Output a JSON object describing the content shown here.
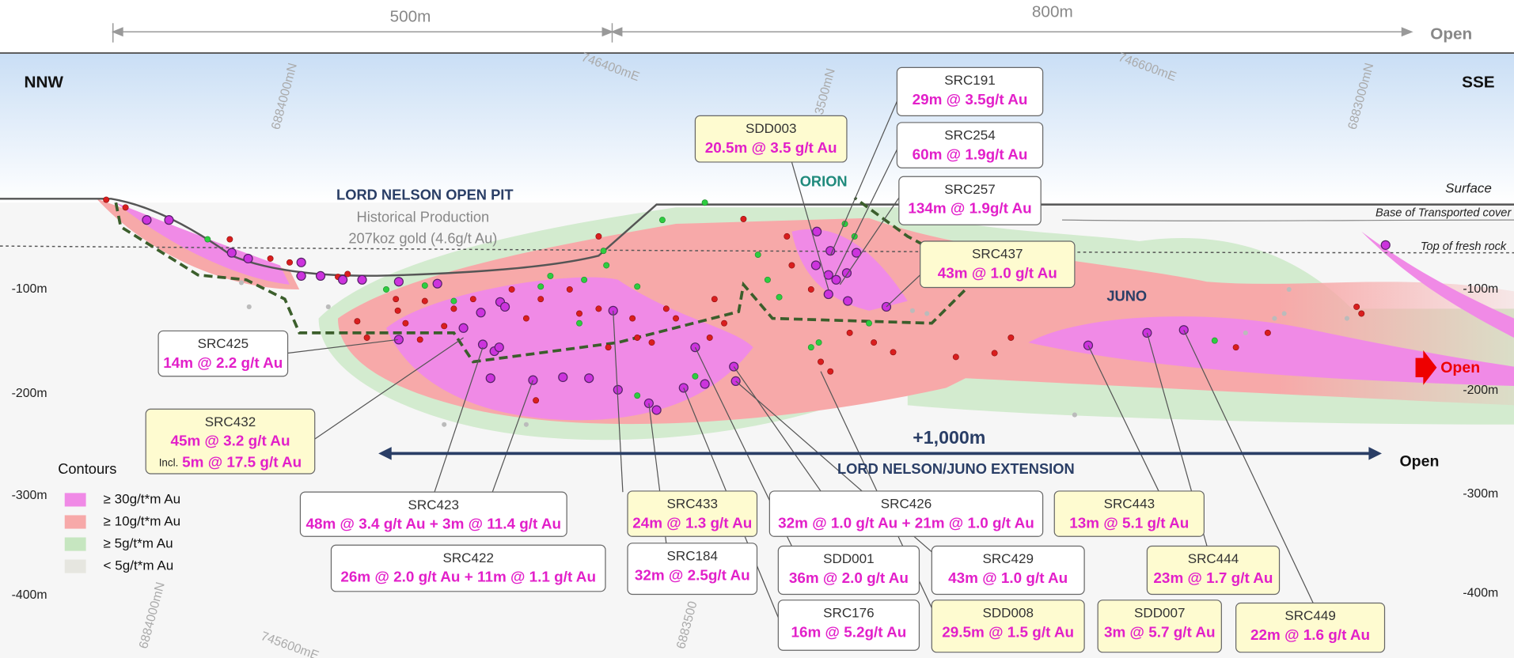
{
  "dimensions": {
    "left": "500m",
    "right": "800m",
    "open": "Open"
  },
  "compass": {
    "west": "NNW",
    "east": "SSE"
  },
  "grid_labels": [
    "6884000mN",
    "746400mE",
    "3500mN",
    "746600mE",
    "6883000mN",
    "6884000mN",
    "745600mE",
    "6883500"
  ],
  "depth_labels": [
    "-100m",
    "-200m",
    "-300m",
    "-400m"
  ],
  "horizons": {
    "surface": "Surface",
    "base_cover": "Base of Transported cover",
    "fresh_rock": "Top of fresh rock"
  },
  "pit": {
    "title": "LORD NELSON OPEN PIT",
    "line1": "Historical Production",
    "line2": "207koz gold (4.6g/t Au)"
  },
  "zones": {
    "orion": "ORION",
    "juno": "JUNO"
  },
  "extension": {
    "length": "+1,000m",
    "name": "LORD NELSON/JUNO EXTENSION",
    "open": "Open",
    "open_right": "Open"
  },
  "legend": {
    "title": "Contours",
    "items": [
      "≥ 30g/t*m Au",
      "≥ 10g/t*m Au",
      "≥ 5g/t*m Au",
      "< 5g/t*m Au"
    ]
  },
  "callouts": [
    {
      "id": "SDD003",
      "text": "20.5m @ 3.5 g/t Au"
    },
    {
      "id": "SRC191",
      "text": "29m @ 3.5g/t Au"
    },
    {
      "id": "SRC254",
      "text": "60m @ 1.9g/t Au"
    },
    {
      "id": "SRC257",
      "text": "134m @ 1.9g/t Au"
    },
    {
      "id": "SRC437",
      "text": "43m @ 1.0 g/t Au"
    },
    {
      "id": "SRC425",
      "text": "14m @ 2.2 g/t Au"
    },
    {
      "id": "SRC432",
      "text": "45m @ 3.2 g/t Au",
      "incl_label": "Incl.",
      "incl_text": "5m @ 17.5 g/t Au"
    },
    {
      "id": "SRC423",
      "text": "48m @ 3.4 g/t Au + 3m @ 11.4 g/t Au"
    },
    {
      "id": "SRC422",
      "text": "26m @ 2.0 g/t Au + 11m @ 1.1 g/t Au"
    },
    {
      "id": "SRC433",
      "text": "24m @ 1.3 g/t Au"
    },
    {
      "id": "SRC184",
      "text": "32m @ 2.5g/t Au"
    },
    {
      "id": "SRC426",
      "text": "32m @ 1.0 g/t Au + 21m @ 1.0 g/t Au"
    },
    {
      "id": "SRC443",
      "text": "13m @ 5.1 g/t Au"
    },
    {
      "id": "SDD001",
      "text": "36m @ 2.0 g/t Au"
    },
    {
      "id": "SRC429",
      "text": "43m @ 1.0 g/t Au"
    },
    {
      "id": "SRC444",
      "text": "23m @ 1.7 g/t Au"
    },
    {
      "id": "SRC176",
      "text": "16m @ 5.2g/t Au"
    },
    {
      "id": "SDD008",
      "text": "29.5m @ 1.5 g/t Au"
    },
    {
      "id": "SDD007",
      "text": "3m @ 5.7 g/t Au"
    },
    {
      "id": "SRC449",
      "text": "22m @ 1.6 g/t Au"
    }
  ]
}
